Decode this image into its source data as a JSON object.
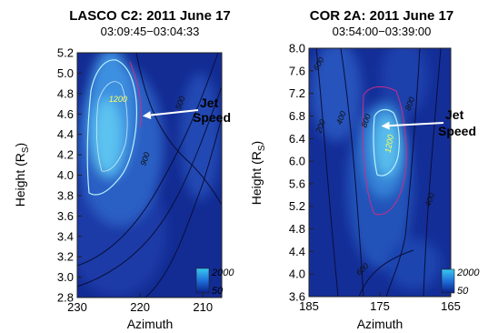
{
  "chart_data": [
    {
      "type": "heatmap",
      "title": "LASCO C2: 2011 June 17",
      "subtitle": "03:09:45−03:04:33",
      "xlabel": "Azimuth",
      "ylabel": "Height (R",
      "ylabel_sub": "S",
      "ylabel_close": ")",
      "xlim": [
        230,
        207
      ],
      "ylim": [
        2.8,
        5.2
      ],
      "x_ticks": [
        230,
        220,
        210
      ],
      "x_tick_labels": [
        "230",
        "220",
        "210"
      ],
      "y_ticks": [
        2.8,
        3.0,
        3.2,
        3.4,
        3.6,
        3.8,
        4.0,
        4.2,
        4.4,
        4.6,
        4.8,
        5.0,
        5.2
      ],
      "y_tick_labels": [
        "2.8",
        "3.0",
        "3.2",
        "3.4",
        "3.6",
        "3.8",
        "4.0",
        "4.2",
        "4.4",
        "4.6",
        "4.8",
        "5.0",
        "5.2"
      ],
      "colorbar": {
        "min": 50,
        "max": 2000,
        "min_label": "50",
        "max_label": "2000"
      },
      "contour_labels": [
        {
          "text": "1200",
          "x": 223.5,
          "y": 4.72,
          "color": "#ffff55",
          "rot": 0
        },
        {
          "text": "500",
          "x": 213.2,
          "y": 4.7,
          "color": "#111111",
          "rot": -70
        },
        {
          "text": "900",
          "x": 218.8,
          "y": 4.15,
          "color": "#111111",
          "rot": -70
        }
      ],
      "annotation": {
        "line1": "Jet",
        "line2": "Speed",
        "arrow_to": [
          219.6,
          4.58
        ]
      },
      "speed_peak": {
        "x": 223.5,
        "y": 4.4,
        "value": 1900
      }
    },
    {
      "type": "heatmap",
      "title": "COR 2A: 2011 June 17",
      "subtitle": "03:54:00−03:39:00",
      "xlabel": "Azimuth",
      "ylabel": "Height (R",
      "ylabel_sub": "S",
      "ylabel_close": ")",
      "xlim": [
        185,
        165
      ],
      "ylim": [
        3.6,
        8.0
      ],
      "x_ticks": [
        185,
        175,
        165
      ],
      "x_tick_labels": [
        "185",
        "175",
        "165"
      ],
      "y_ticks": [
        3.6,
        4.0,
        4.4,
        4.8,
        5.2,
        5.6,
        6.0,
        6.4,
        6.8,
        7.2,
        7.6,
        8.0
      ],
      "y_tick_labels": [
        "3.6",
        "4.0",
        "4.4",
        "4.8",
        "5.2",
        "5.6",
        "6.0",
        "6.4",
        "6.8",
        "7.2",
        "7.6",
        "8.0"
      ],
      "colorbar": {
        "min": 50,
        "max": 2000,
        "min_label": "50",
        "max_label": "2000"
      },
      "contour_labels": [
        {
          "text": "1200",
          "x": 173.3,
          "y": 6.3,
          "color": "#ffff55",
          "rot": -80
        },
        {
          "text": "800",
          "x": 176.6,
          "y": 6.7,
          "color": "#111111",
          "rot": -70
        },
        {
          "text": "400",
          "x": 180.1,
          "y": 6.75,
          "color": "#111111",
          "rot": -70
        },
        {
          "text": "200",
          "x": 183.0,
          "y": 6.6,
          "color": "#111111",
          "rot": -70
        },
        {
          "text": "800",
          "x": 170.4,
          "y": 7.0,
          "color": "#111111",
          "rot": -70
        },
        {
          "text": "600",
          "x": 177.2,
          "y": 4.05,
          "color": "#111111",
          "rot": -45
        },
        {
          "text": "400",
          "x": 167.6,
          "y": 5.3,
          "color": "#111111",
          "rot": -70
        },
        {
          "text": "600",
          "x": 183.3,
          "y": 7.7,
          "color": "#111111",
          "rot": -60
        }
      ],
      "annotation": {
        "line1": "Jet",
        "line2": "Speed",
        "arrow_to": [
          174.8,
          6.62
        ]
      },
      "speed_peak": {
        "x": 174.2,
        "y": 6.3,
        "value": 1900
      }
    }
  ]
}
